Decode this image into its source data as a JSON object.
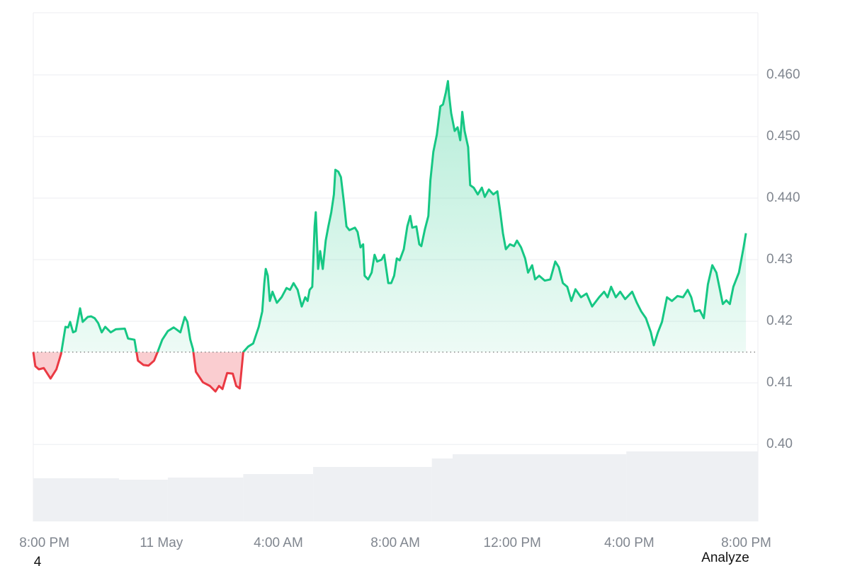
{
  "chart_data": {
    "type": "line",
    "x": [
      -0.38,
      -0.31,
      -0.19,
      -0.02,
      0.21,
      0.41,
      0.57,
      0.72,
      0.81,
      0.88,
      0.98,
      1.07,
      1.22,
      1.31,
      1.48,
      1.6,
      1.72,
      1.84,
      1.96,
      2.08,
      2.27,
      2.44,
      2.75,
      2.86,
      3.08,
      3.2,
      3.39,
      3.56,
      3.75,
      3.87,
      4.03,
      4.22,
      4.42,
      4.51,
      4.65,
      4.8,
      4.89,
      4.99,
      5.08,
      5.18,
      5.42,
      5.66,
      5.85,
      5.97,
      6.09,
      6.25,
      6.44,
      6.56,
      6.68,
      6.8,
      6.97,
      7.14,
      7.33,
      7.45,
      7.52,
      7.57,
      7.64,
      7.71,
      7.8,
      7.95,
      8.11,
      8.28,
      8.4,
      8.52,
      8.66,
      8.8,
      8.92,
      9.0,
      9.07,
      9.16,
      9.24,
      9.28,
      9.36,
      9.43,
      9.52,
      9.62,
      9.71,
      9.81,
      9.9,
      9.95,
      10.05,
      10.14,
      10.24,
      10.33,
      10.43,
      10.62,
      10.71,
      10.81,
      10.9,
      10.95,
      11.07,
      11.19,
      11.29,
      11.38,
      11.53,
      11.62,
      11.76,
      11.86,
      11.96,
      12.05,
      12.15,
      12.29,
      12.41,
      12.51,
      12.58,
      12.72,
      12.82,
      12.89,
      13.01,
      13.13,
      13.2,
      13.3,
      13.42,
      13.54,
      13.63,
      13.73,
      13.8,
      13.84,
      13.91,
      14.03,
      14.13,
      14.22,
      14.29,
      14.37,
      14.49,
      14.56,
      14.68,
      14.82,
      14.96,
      15.06,
      15.2,
      15.35,
      15.49,
      15.59,
      15.68,
      15.78,
      15.92,
      16.06,
      16.16,
      16.3,
      16.44,
      16.54,
      16.68,
      16.78,
      16.92,
      17.11,
      17.3,
      17.47,
      17.59,
      17.73,
      17.88,
      18.02,
      18.16,
      18.35,
      18.54,
      18.73,
      18.97,
      19.14,
      19.26,
      19.38,
      19.54,
      19.69,
      19.86,
      20.1,
      20.26,
      20.41,
      20.57,
      20.74,
      20.84,
      20.98,
      21.12,
      21.29,
      21.46,
      21.65,
      21.84,
      22.0,
      22.12,
      22.24,
      22.41,
      22.55,
      22.69,
      22.84,
      22.98,
      23.08,
      23.2,
      23.32,
      23.44,
      23.56,
      23.75,
      23.91,
      23.99
    ],
    "values": [
      0.415,
      0.4127,
      0.4122,
      0.4124,
      0.4107,
      0.4122,
      0.4147,
      0.4191,
      0.419,
      0.4199,
      0.4182,
      0.4184,
      0.4221,
      0.4199,
      0.4207,
      0.4208,
      0.4205,
      0.4197,
      0.4182,
      0.4191,
      0.4182,
      0.4187,
      0.4188,
      0.4172,
      0.417,
      0.4136,
      0.4129,
      0.4128,
      0.4136,
      0.415,
      0.417,
      0.4184,
      0.419,
      0.4187,
      0.4182,
      0.4207,
      0.4199,
      0.417,
      0.4155,
      0.4118,
      0.4101,
      0.4095,
      0.4086,
      0.4095,
      0.409,
      0.4116,
      0.4115,
      0.4095,
      0.4091,
      0.415,
      0.4159,
      0.4164,
      0.4191,
      0.4216,
      0.4262,
      0.4285,
      0.4274,
      0.4233,
      0.4248,
      0.423,
      0.4239,
      0.4254,
      0.4251,
      0.4262,
      0.4251,
      0.4224,
      0.4239,
      0.4233,
      0.4251,
      0.4256,
      0.4354,
      0.4377,
      0.4285,
      0.4314,
      0.4285,
      0.4331,
      0.4354,
      0.4377,
      0.4406,
      0.4446,
      0.4443,
      0.4434,
      0.4394,
      0.4354,
      0.4348,
      0.4352,
      0.4345,
      0.432,
      0.4325,
      0.4274,
      0.4268,
      0.4279,
      0.4308,
      0.4297,
      0.43,
      0.4308,
      0.4262,
      0.4262,
      0.4274,
      0.4302,
      0.4299,
      0.4317,
      0.4354,
      0.4371,
      0.4352,
      0.4354,
      0.4325,
      0.4322,
      0.4349,
      0.4371,
      0.4429,
      0.4475,
      0.4503,
      0.4549,
      0.4552,
      0.4572,
      0.459,
      0.4567,
      0.4538,
      0.4509,
      0.4515,
      0.4494,
      0.454,
      0.4509,
      0.4483,
      0.4421,
      0.4417,
      0.4406,
      0.4417,
      0.4402,
      0.4414,
      0.4406,
      0.4411,
      0.4377,
      0.4343,
      0.4317,
      0.4325,
      0.4322,
      0.4331,
      0.432,
      0.4302,
      0.4279,
      0.4291,
      0.4268,
      0.4274,
      0.4266,
      0.4268,
      0.4297,
      0.4288,
      0.4262,
      0.4256,
      0.4233,
      0.4252,
      0.4239,
      0.4245,
      0.4224,
      0.4239,
      0.4248,
      0.4239,
      0.4256,
      0.4239,
      0.4248,
      0.4236,
      0.4248,
      0.423,
      0.4216,
      0.4205,
      0.4182,
      0.4161,
      0.4182,
      0.4199,
      0.4239,
      0.4233,
      0.4241,
      0.4239,
      0.4251,
      0.4239,
      0.4216,
      0.4218,
      0.4205,
      0.426,
      0.4291,
      0.4279,
      0.4256,
      0.4228,
      0.4234,
      0.4228,
      0.4256,
      0.4279,
      0.432,
      0.4343
    ],
    "baseline": 0.415,
    "color_up": "#16c784",
    "color_down": "#ea3943",
    "xlim": [
      -0.38,
      24.4
    ],
    "ylim": [
      0.3875,
      0.4701
    ],
    "xticks": [
      {
        "value": 0,
        "label": "8:00 PM"
      },
      {
        "value": 4,
        "label": "11 May"
      },
      {
        "value": 8,
        "label": "4:00 AM"
      },
      {
        "value": 12,
        "label": "8:00 AM"
      },
      {
        "value": 16,
        "label": "12:00 PM"
      },
      {
        "value": 20,
        "label": "4:00 PM"
      },
      {
        "value": 24,
        "label": "8:00 PM"
      }
    ],
    "yticks": [
      {
        "value": 0.4,
        "label": "0.40"
      },
      0.41,
      0.42,
      0.43,
      {
        "value": 0.44,
        "label": "0.440"
      },
      {
        "value": 0.45,
        "label": "0.450"
      },
      {
        "value": 0.46,
        "label": "0.460"
      }
    ],
    "grid": true,
    "volume": {
      "x": [
        -0.38,
        2.55,
        4.22,
        6.8,
        9.19,
        13.25,
        13.96,
        19.9
      ],
      "values": [
        61,
        59,
        62,
        67,
        77,
        89,
        95,
        99
      ],
      "vlim": [
        0,
        100
      ],
      "color": "#eef0f3"
    }
  },
  "footer": {
    "page": "4",
    "button": "Analyze"
  }
}
